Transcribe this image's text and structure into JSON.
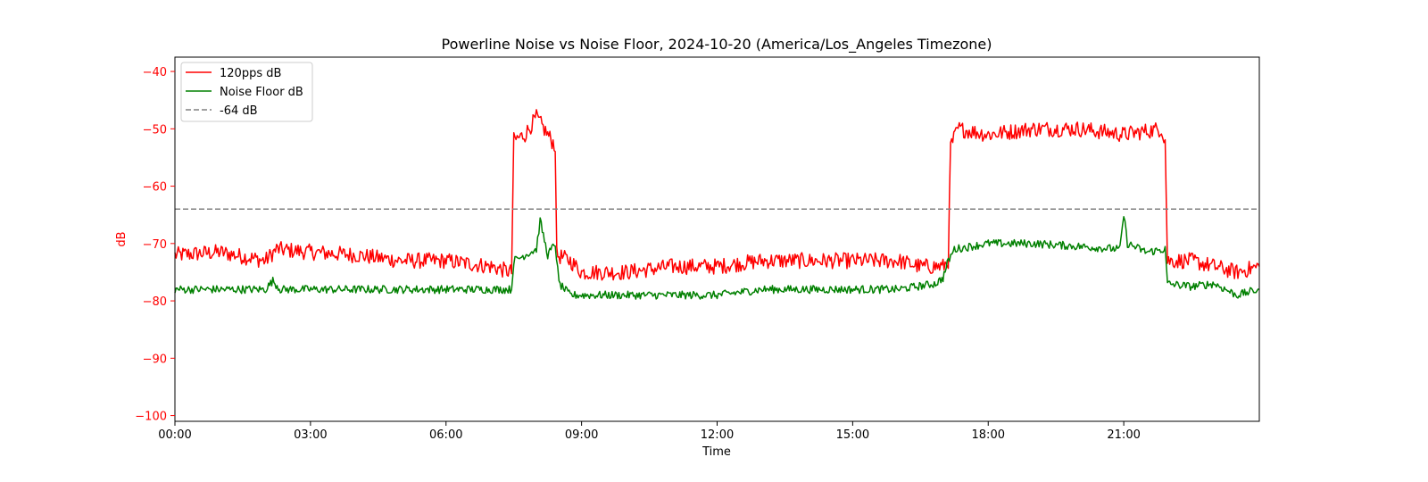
{
  "chart_data": {
    "type": "line",
    "title": "Powerline Noise vs Noise Floor, 2024-10-20 (America/Los_Angeles Timezone)",
    "xlabel": "Time",
    "ylabel": "dB",
    "ylabel_color": "#ff0000",
    "xlim": [
      "00:00",
      "24:00"
    ],
    "ylim": [
      -101,
      -37.5
    ],
    "x_ticks": [
      "00:00",
      "03:00",
      "06:00",
      "09:00",
      "12:00",
      "15:00",
      "18:00",
      "21:00"
    ],
    "y_ticks": [
      "−40",
      "−50",
      "−60",
      "−70",
      "−80",
      "−90",
      "−100"
    ],
    "y_tick_values": [
      -40,
      -50,
      -60,
      -70,
      -80,
      -90,
      -100
    ],
    "grid": false,
    "legend_position": "top-left",
    "series": [
      {
        "name": "120pps dB",
        "color": "#ff0000",
        "style": "solid",
        "points": [
          [
            "00:00",
            -72
          ],
          [
            "01:00",
            -71.5
          ],
          [
            "02:00",
            -73
          ],
          [
            "02:15",
            -71
          ],
          [
            "03:00",
            -71.5
          ],
          [
            "04:00",
            -72
          ],
          [
            "05:00",
            -73
          ],
          [
            "06:00",
            -73
          ],
          [
            "07:00",
            -74
          ],
          [
            "07:27",
            -75
          ],
          [
            "07:30",
            -52
          ],
          [
            "07:45",
            -51
          ],
          [
            "08:00",
            -48
          ],
          [
            "08:15",
            -51
          ],
          [
            "08:25",
            -53
          ],
          [
            "08:27",
            -72
          ],
          [
            "08:45",
            -73
          ],
          [
            "09:00",
            -75
          ],
          [
            "10:00",
            -75
          ],
          [
            "11:00",
            -74
          ],
          [
            "12:00",
            -74
          ],
          [
            "13:00",
            -73
          ],
          [
            "14:00",
            -73
          ],
          [
            "15:00",
            -73
          ],
          [
            "16:00",
            -73
          ],
          [
            "16:30",
            -74
          ],
          [
            "17:00",
            -74
          ],
          [
            "17:07",
            -73
          ],
          [
            "17:10",
            -53
          ],
          [
            "17:20",
            -50
          ],
          [
            "18:00",
            -51
          ],
          [
            "19:00",
            -50
          ],
          [
            "20:00",
            -50
          ],
          [
            "21:00",
            -51
          ],
          [
            "21:50",
            -50
          ],
          [
            "21:55",
            -52
          ],
          [
            "21:58",
            -73
          ],
          [
            "22:30",
            -73
          ],
          [
            "23:00",
            -74
          ],
          [
            "23:30",
            -75
          ],
          [
            "24:00",
            -74
          ]
        ]
      },
      {
        "name": "Noise Floor dB",
        "color": "#008000",
        "style": "solid",
        "points": [
          [
            "00:00",
            -78
          ],
          [
            "02:00",
            -78
          ],
          [
            "02:10",
            -76.5
          ],
          [
            "02:20",
            -78
          ],
          [
            "05:00",
            -78
          ],
          [
            "07:00",
            -78
          ],
          [
            "07:27",
            -78
          ],
          [
            "07:30",
            -73
          ],
          [
            "08:00",
            -71
          ],
          [
            "08:05",
            -66
          ],
          [
            "08:15",
            -72
          ],
          [
            "08:25",
            -70
          ],
          [
            "08:30",
            -77
          ],
          [
            "08:45",
            -79
          ],
          [
            "10:00",
            -79
          ],
          [
            "11:00",
            -79
          ],
          [
            "12:00",
            -79
          ],
          [
            "13:00",
            -78
          ],
          [
            "14:00",
            -78
          ],
          [
            "15:00",
            -78
          ],
          [
            "16:00",
            -78
          ],
          [
            "16:50",
            -77
          ],
          [
            "17:00",
            -76
          ],
          [
            "17:07",
            -73
          ],
          [
            "17:15",
            -71
          ],
          [
            "18:00",
            -70
          ],
          [
            "19:00",
            -70
          ],
          [
            "20:00",
            -70.5
          ],
          [
            "20:55",
            -71
          ],
          [
            "21:00",
            -65
          ],
          [
            "21:05",
            -70
          ],
          [
            "21:30",
            -71.5
          ],
          [
            "21:55",
            -71
          ],
          [
            "21:58",
            -77
          ],
          [
            "22:30",
            -77.5
          ],
          [
            "23:00",
            -77
          ],
          [
            "23:30",
            -79
          ],
          [
            "24:00",
            -78
          ]
        ]
      },
      {
        "name": "-64 dB",
        "color": "#808080",
        "style": "dashed",
        "points": [
          [
            "00:00",
            -64
          ],
          [
            "24:00",
            -64
          ]
        ]
      }
    ]
  }
}
